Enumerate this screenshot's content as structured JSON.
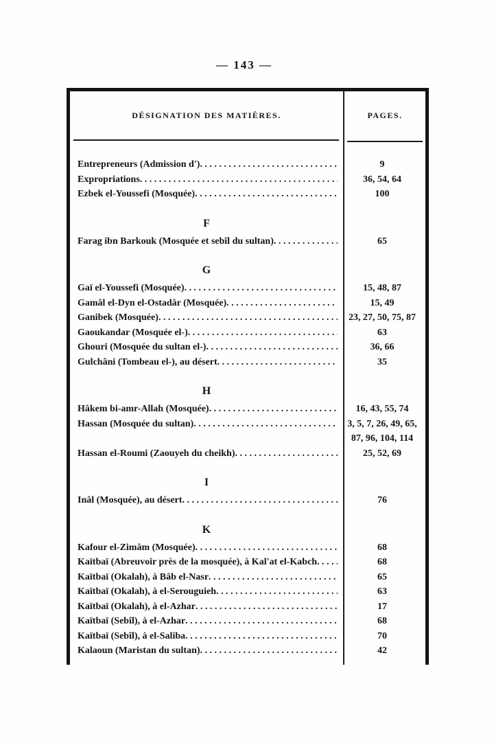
{
  "page": {
    "number_display": "— 143 —"
  },
  "colors": {
    "ink": "#141414",
    "paper": "#fefefe"
  },
  "table": {
    "header": {
      "left": "DÉSIGNATION DES MATIÈRES.",
      "right": "PAGES."
    },
    "sections": [
      {
        "letter": "",
        "entries": [
          {
            "label": "Entrepreneurs (Admission d')",
            "pages": "9"
          },
          {
            "label": "Expropriations",
            "pages": "36, 54, 64"
          },
          {
            "label": "Ezbek el-Youssefi (Mosquée)",
            "pages": "100"
          }
        ]
      },
      {
        "letter": "F",
        "entries": [
          {
            "label": "Farag ibn Barkouk (Mosquée et sebîl du sultan)",
            "pages": "65"
          }
        ]
      },
      {
        "letter": "G",
        "entries": [
          {
            "label": "Gaï el-Youssefi (Mosquée)",
            "pages": "15, 48, 87"
          },
          {
            "label": "Gamâl el-Dyn el-Ostadâr (Mosquée)",
            "pages": "15, 49"
          },
          {
            "label": "Ganibek (Mosquée)",
            "pages": "23, 27, 50, 75, 87"
          },
          {
            "label": "Gaoukandar (Mosquée el-)",
            "pages": "63"
          },
          {
            "label": "Ghouri (Mosquée du sultan el-)",
            "pages": "36, 66"
          },
          {
            "label": "Gulchâni (Tombeau el-), au désert",
            "pages": "35"
          }
        ]
      },
      {
        "letter": "H",
        "entries": [
          {
            "label": "Hâkem bi-amr-Allah (Mosquée)",
            "pages": "16, 43, 55, 74"
          },
          {
            "label": "Hassan (Mosquée du sultan)",
            "pages": "3, 5, 7, 26, 49, 65, 87, 96, 104, 114"
          },
          {
            "label": "Hassan el-Roumi (Zaouyeh du cheikh)",
            "pages": "25, 52, 69"
          }
        ]
      },
      {
        "letter": "I",
        "entries": [
          {
            "label": "Inâl (Mosquée), au désert",
            "pages": "76"
          }
        ]
      },
      {
        "letter": "K",
        "entries": [
          {
            "label": "Kafour el-Zimâm (Mosquée)",
            "pages": "68"
          },
          {
            "label": "Kaïtbaï (Abreuvoir près de la mosquée), à Kal'at el-Kabch",
            "pages": "68"
          },
          {
            "label": "Kaïtbaï (Okalah), à Bâb el-Nasr",
            "pages": "65"
          },
          {
            "label": "Kaïtbaï (Okalah), à el-Serouguieh",
            "pages": "63"
          },
          {
            "label": "Kaïtbaï (Okalah), à el-Azhar",
            "pages": "17"
          },
          {
            "label": "Kaïtbaï (Sebîl), à el-Azhar",
            "pages": "68"
          },
          {
            "label": "Kaïtbaï (Sebîl), à el-Saliba",
            "pages": "70"
          },
          {
            "label": "Kalaoun (Maristan du sultan)",
            "pages": "42"
          }
        ]
      }
    ]
  }
}
